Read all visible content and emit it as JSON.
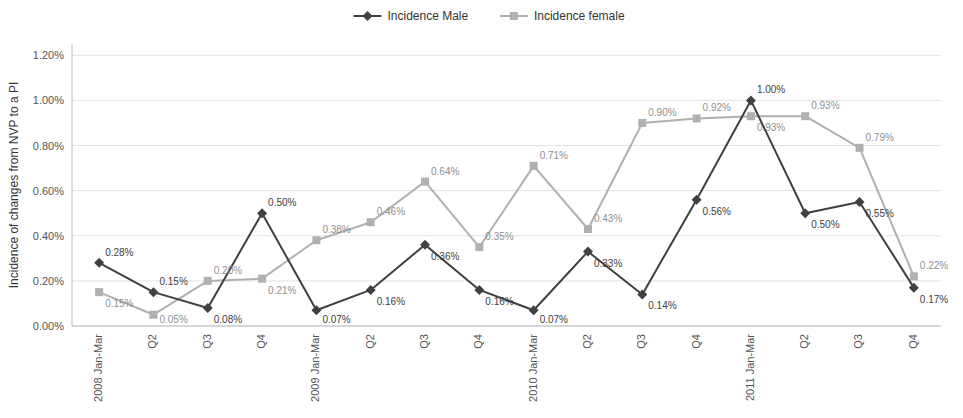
{
  "chart_data": {
    "type": "line",
    "categories": [
      "2008 Jan-Mar",
      "Q2",
      "Q3",
      "Q4",
      "2009 Jan-Mar",
      "Q2",
      "Q3",
      "Q4",
      "2010 Jan-Mar",
      "Q2",
      "Q3",
      "Q4",
      "2011 Jan-Mar",
      "Q2",
      "Q3",
      "Q4"
    ],
    "series": [
      {
        "name": "Incidence Male",
        "color": "#404040",
        "marker": "diamond",
        "values": [
          0.0028,
          0.0015,
          0.0008,
          0.005,
          0.0007,
          0.0016,
          0.0036,
          0.0016,
          0.0007,
          0.0033,
          0.0014,
          0.0056,
          0.01,
          0.005,
          0.0055,
          0.0017
        ],
        "value_labels": [
          "0.28%",
          "0.15%",
          "0.08%",
          "0.50%",
          "0.07%",
          "0.16%",
          "0.36%",
          "0.16%",
          "0.07%",
          "0.33%",
          "0.14%",
          "0.56%",
          "1.00%",
          "0.50%",
          "0.55%",
          "0.17%"
        ]
      },
      {
        "name": "Incidence female",
        "color": "#b0b0b0",
        "marker": "square",
        "values": [
          0.0015,
          0.0005,
          0.002,
          0.0021,
          0.0038,
          0.0046,
          0.0064,
          0.0035,
          0.0071,
          0.0043,
          0.009,
          0.0092,
          0.0093,
          0.0093,
          0.0079,
          0.0022
        ],
        "value_labels": [
          "0.15%",
          "0.05%",
          "0.20%",
          "0.21%",
          "0.38%",
          "0.46%",
          "0.64%",
          "0.35%",
          "0.71%",
          "0.43%",
          "0.90%",
          "0.92%",
          "0.93%",
          "0.93%",
          "0.79%",
          "0.22%"
        ]
      }
    ],
    "y_label": "Incidence of changes from NVP to a PI",
    "ylim": [
      0.0,
      0.0125
    ],
    "yticks": [
      {
        "value": 0.0,
        "label": "0.00%"
      },
      {
        "value": 0.002,
        "label": "0.20%"
      },
      {
        "value": 0.004,
        "label": "0.40%"
      },
      {
        "value": 0.006,
        "label": "0.60%"
      },
      {
        "value": 0.008,
        "label": "0.80%"
      },
      {
        "value": 0.01,
        "label": "1.00%"
      },
      {
        "value": 0.012,
        "label": "1.20%"
      }
    ],
    "grid": true,
    "legend": "top",
    "data_labels": true
  }
}
